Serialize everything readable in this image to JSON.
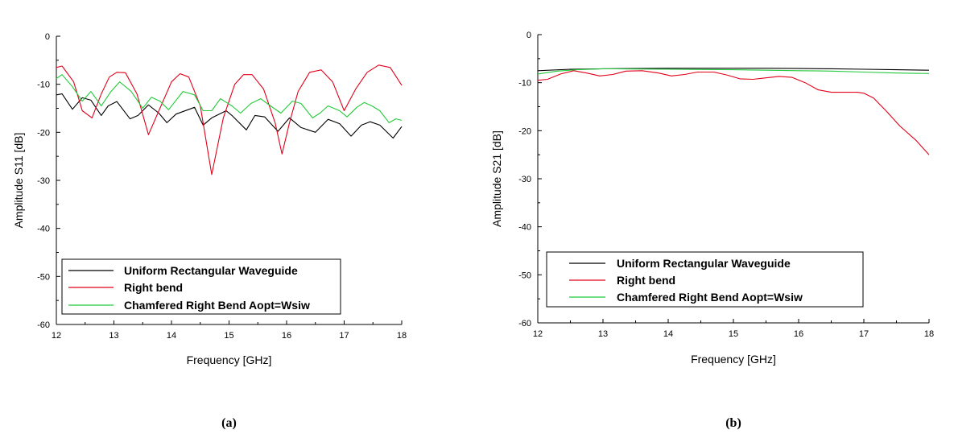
{
  "chart_data": [
    {
      "type": "line",
      "panel_label": "(a)",
      "xlabel": "Frequency [GHz]",
      "ylabel": "Amplitude S11 [dB]",
      "xlim": [
        12,
        18
      ],
      "ylim": [
        -60,
        0
      ],
      "xticks": [
        "12",
        "13",
        "14",
        "15",
        "16",
        "17",
        "18"
      ],
      "yticks": [
        "0",
        "-10",
        "-20",
        "-30",
        "-40",
        "-50",
        "-60"
      ],
      "legend_position": "bottom-left",
      "series": [
        {
          "name": "Uniform Rectangular Waveguide",
          "color": "#000000",
          "x": [
            12.0,
            12.1,
            12.28,
            12.45,
            12.6,
            12.78,
            12.9,
            13.05,
            13.28,
            13.42,
            13.6,
            13.78,
            13.92,
            14.08,
            14.4,
            14.55,
            14.7,
            14.95,
            15.05,
            15.3,
            15.45,
            15.62,
            15.85,
            16.05,
            16.25,
            16.5,
            16.72,
            16.92,
            17.12,
            17.3,
            17.45,
            17.62,
            17.85,
            18.0
          ],
          "values": [
            -12.2,
            -12.0,
            -15.2,
            -12.8,
            -13.3,
            -16.5,
            -14.5,
            -13.6,
            -17.2,
            -16.5,
            -14.3,
            -16.0,
            -18.0,
            -16.2,
            -14.8,
            -18.5,
            -17.0,
            -15.5,
            -16.5,
            -19.5,
            -16.5,
            -16.8,
            -19.8,
            -17.0,
            -19.0,
            -20.0,
            -17.3,
            -18.2,
            -20.8,
            -18.5,
            -17.8,
            -18.5,
            -21.2,
            -18.8
          ]
        },
        {
          "name": "Right bend",
          "color": "#e2001a",
          "x": [
            12.0,
            12.1,
            12.3,
            12.45,
            12.62,
            12.78,
            12.92,
            13.05,
            13.2,
            13.4,
            13.6,
            13.8,
            14.0,
            14.15,
            14.3,
            14.5,
            14.7,
            14.9,
            15.1,
            15.25,
            15.4,
            15.6,
            15.8,
            15.92,
            16.05,
            16.2,
            16.4,
            16.6,
            16.8,
            17.0,
            17.2,
            17.4,
            17.6,
            17.8,
            18.0
          ],
          "values": [
            -6.5,
            -6.2,
            -9.5,
            -15.5,
            -17.0,
            -12.0,
            -8.5,
            -7.5,
            -7.6,
            -12.0,
            -20.5,
            -15.0,
            -9.5,
            -7.8,
            -8.5,
            -14.5,
            -28.8,
            -17.0,
            -10.0,
            -8.0,
            -8.0,
            -11.0,
            -18.0,
            -24.5,
            -18.0,
            -11.5,
            -7.5,
            -7.0,
            -9.5,
            -15.5,
            -11.0,
            -7.5,
            -6.0,
            -6.5,
            -10.2
          ]
        },
        {
          "name": "Chamfered Right Bend Aopt=Wsiw",
          "color": "#22c93a",
          "x": [
            12.0,
            12.1,
            12.28,
            12.45,
            12.6,
            12.78,
            12.95,
            13.1,
            13.3,
            13.5,
            13.65,
            13.8,
            13.95,
            14.2,
            14.4,
            14.55,
            14.7,
            14.85,
            15.05,
            15.2,
            15.38,
            15.55,
            15.72,
            15.9,
            16.1,
            16.25,
            16.45,
            16.58,
            16.72,
            16.92,
            17.05,
            17.22,
            17.35,
            17.48,
            17.62,
            17.78,
            17.9,
            18.0
          ],
          "values": [
            -8.8,
            -8.0,
            -10.5,
            -13.5,
            -11.5,
            -14.5,
            -11.5,
            -9.5,
            -11.5,
            -15.0,
            -12.7,
            -13.5,
            -15.3,
            -11.5,
            -12.2,
            -15.5,
            -15.5,
            -13.0,
            -14.5,
            -16.0,
            -14.0,
            -13.0,
            -14.5,
            -16.0,
            -13.5,
            -14.0,
            -17.0,
            -16.0,
            -14.5,
            -15.5,
            -16.8,
            -14.8,
            -13.8,
            -14.5,
            -15.5,
            -18.0,
            -17.2,
            -17.5
          ]
        }
      ]
    },
    {
      "type": "line",
      "panel_label": "(b)",
      "xlabel": "Frequency [GHz]",
      "ylabel": "Amplitude S21 [dB]",
      "xlim": [
        12,
        18
      ],
      "ylim": [
        -60,
        0
      ],
      "xticks": [
        "12",
        "13",
        "14",
        "15",
        "16",
        "17",
        "18"
      ],
      "yticks": [
        "0",
        "-10",
        "-20",
        "-30",
        "-40",
        "-50",
        "-60"
      ],
      "legend_position": "bottom-left",
      "series": [
        {
          "name": "Uniform Rectangular Waveguide",
          "color": "#000000",
          "x": [
            12.0,
            12.5,
            13.0,
            13.5,
            14.0,
            14.5,
            15.0,
            15.5,
            16.0,
            16.5,
            17.0,
            17.5,
            18.0
          ],
          "values": [
            -7.5,
            -7.2,
            -7.1,
            -7.05,
            -7.0,
            -7.0,
            -7.0,
            -7.0,
            -7.05,
            -7.1,
            -7.2,
            -7.3,
            -7.4
          ]
        },
        {
          "name": "Right bend",
          "color": "#e2001a",
          "x": [
            12.0,
            12.15,
            12.35,
            12.55,
            12.75,
            12.95,
            13.15,
            13.35,
            13.6,
            13.85,
            14.05,
            14.25,
            14.45,
            14.7,
            14.9,
            15.1,
            15.3,
            15.5,
            15.7,
            15.9,
            16.1,
            16.3,
            16.5,
            16.7,
            16.9,
            17.0,
            17.15,
            17.35,
            17.55,
            17.8,
            18.0
          ],
          "values": [
            -9.5,
            -9.3,
            -8.2,
            -7.5,
            -8.0,
            -8.6,
            -8.3,
            -7.6,
            -7.5,
            -8.0,
            -8.6,
            -8.3,
            -7.8,
            -7.8,
            -8.4,
            -9.2,
            -9.3,
            -9.0,
            -8.7,
            -8.9,
            -10.0,
            -11.5,
            -12.0,
            -12.0,
            -12.0,
            -12.2,
            -13.2,
            -16.0,
            -19.0,
            -22.0,
            -25.0
          ]
        },
        {
          "name": "Chamfered Right Bend Aopt=Wsiw",
          "color": "#22c93a",
          "x": [
            12.0,
            12.3,
            12.6,
            13.0,
            13.5,
            14.0,
            14.5,
            15.0,
            15.5,
            16.0,
            16.5,
            17.0,
            17.5,
            18.0
          ],
          "values": [
            -8.2,
            -7.6,
            -7.3,
            -7.1,
            -7.15,
            -7.2,
            -7.25,
            -7.3,
            -7.4,
            -7.5,
            -7.6,
            -7.8,
            -8.0,
            -8.1
          ]
        }
      ]
    }
  ]
}
